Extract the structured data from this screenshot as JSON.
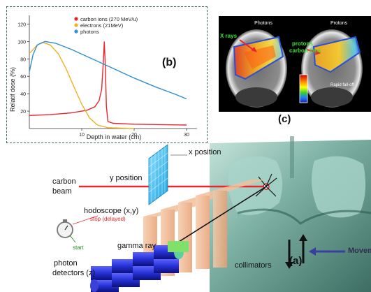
{
  "panel_b": {
    "tag": "(b)",
    "chart_data": {
      "type": "line",
      "xlabel": "Depth in water  (cm)",
      "ylabel": "Relatif dose  (%)",
      "xlim": [
        0,
        32
      ],
      "ylim": [
        0,
        130
      ],
      "x_ticks": [
        "10",
        "20",
        "30"
      ],
      "y_ticks": [
        "20",
        "40",
        "60",
        "80",
        "100",
        "120"
      ],
      "legend_position": "top-center",
      "series": [
        {
          "name": "carbon ions (270 MeV/u)",
          "color": "#e8262b",
          "points": [
            [
              0,
              15
            ],
            [
              4,
              16
            ],
            [
              8,
              18
            ],
            [
              11,
              21
            ],
            [
              12.5,
              25
            ],
            [
              13.3,
              32
            ],
            [
              13.8,
              45
            ],
            [
              14.1,
              75
            ],
            [
              14.3,
              100
            ],
            [
              14.5,
              70
            ],
            [
              14.7,
              25
            ],
            [
              15,
              8
            ],
            [
              16,
              6
            ],
            [
              20,
              5
            ],
            [
              30,
              4
            ]
          ]
        },
        {
          "name": "electrons (21MeV)",
          "color": "#f0b024",
          "points": [
            [
              0,
              86
            ],
            [
              1.5,
              96
            ],
            [
              2.5,
              99
            ],
            [
              4,
              96
            ],
            [
              5.5,
              86
            ],
            [
              7,
              69
            ],
            [
              8.5,
              48
            ],
            [
              10,
              28
            ],
            [
              11.5,
              12
            ],
            [
              13,
              4
            ],
            [
              15,
              1
            ],
            [
              20,
              0
            ]
          ]
        },
        {
          "name": "photons",
          "color": "#2f8fd0",
          "points": [
            [
              0,
              65
            ],
            [
              0.7,
              85
            ],
            [
              1.5,
              96
            ],
            [
              3,
              100
            ],
            [
              5,
              98
            ],
            [
              8,
              91
            ],
            [
              12,
              80
            ],
            [
              16,
              69
            ],
            [
              20,
              58
            ],
            [
              24,
              48
            ],
            [
              28,
              39
            ],
            [
              30,
              34
            ]
          ]
        }
      ]
    }
  },
  "panel_c": {
    "tag": "(c)",
    "left_title": "Photons",
    "right_title": "Protons",
    "x_rays_label": "X rays",
    "protons_label": "protons",
    "carbon_ions_label": "carbon ions",
    "falloff_label": "Rapid fall-off"
  },
  "panel_a": {
    "tag": "(a)",
    "x_position": "x position",
    "y_position": "y position",
    "carbon_beam_1": "carbon",
    "carbon_beam_2": "beam",
    "hodoscope": "hodoscope (x,y)",
    "stop": "stop (delayed)",
    "start": "start",
    "gamma_ray": "gamma ray",
    "photon_1": "photon",
    "photon_2": "detectors (z)",
    "collimators": "collimators",
    "movement": "Movement"
  }
}
